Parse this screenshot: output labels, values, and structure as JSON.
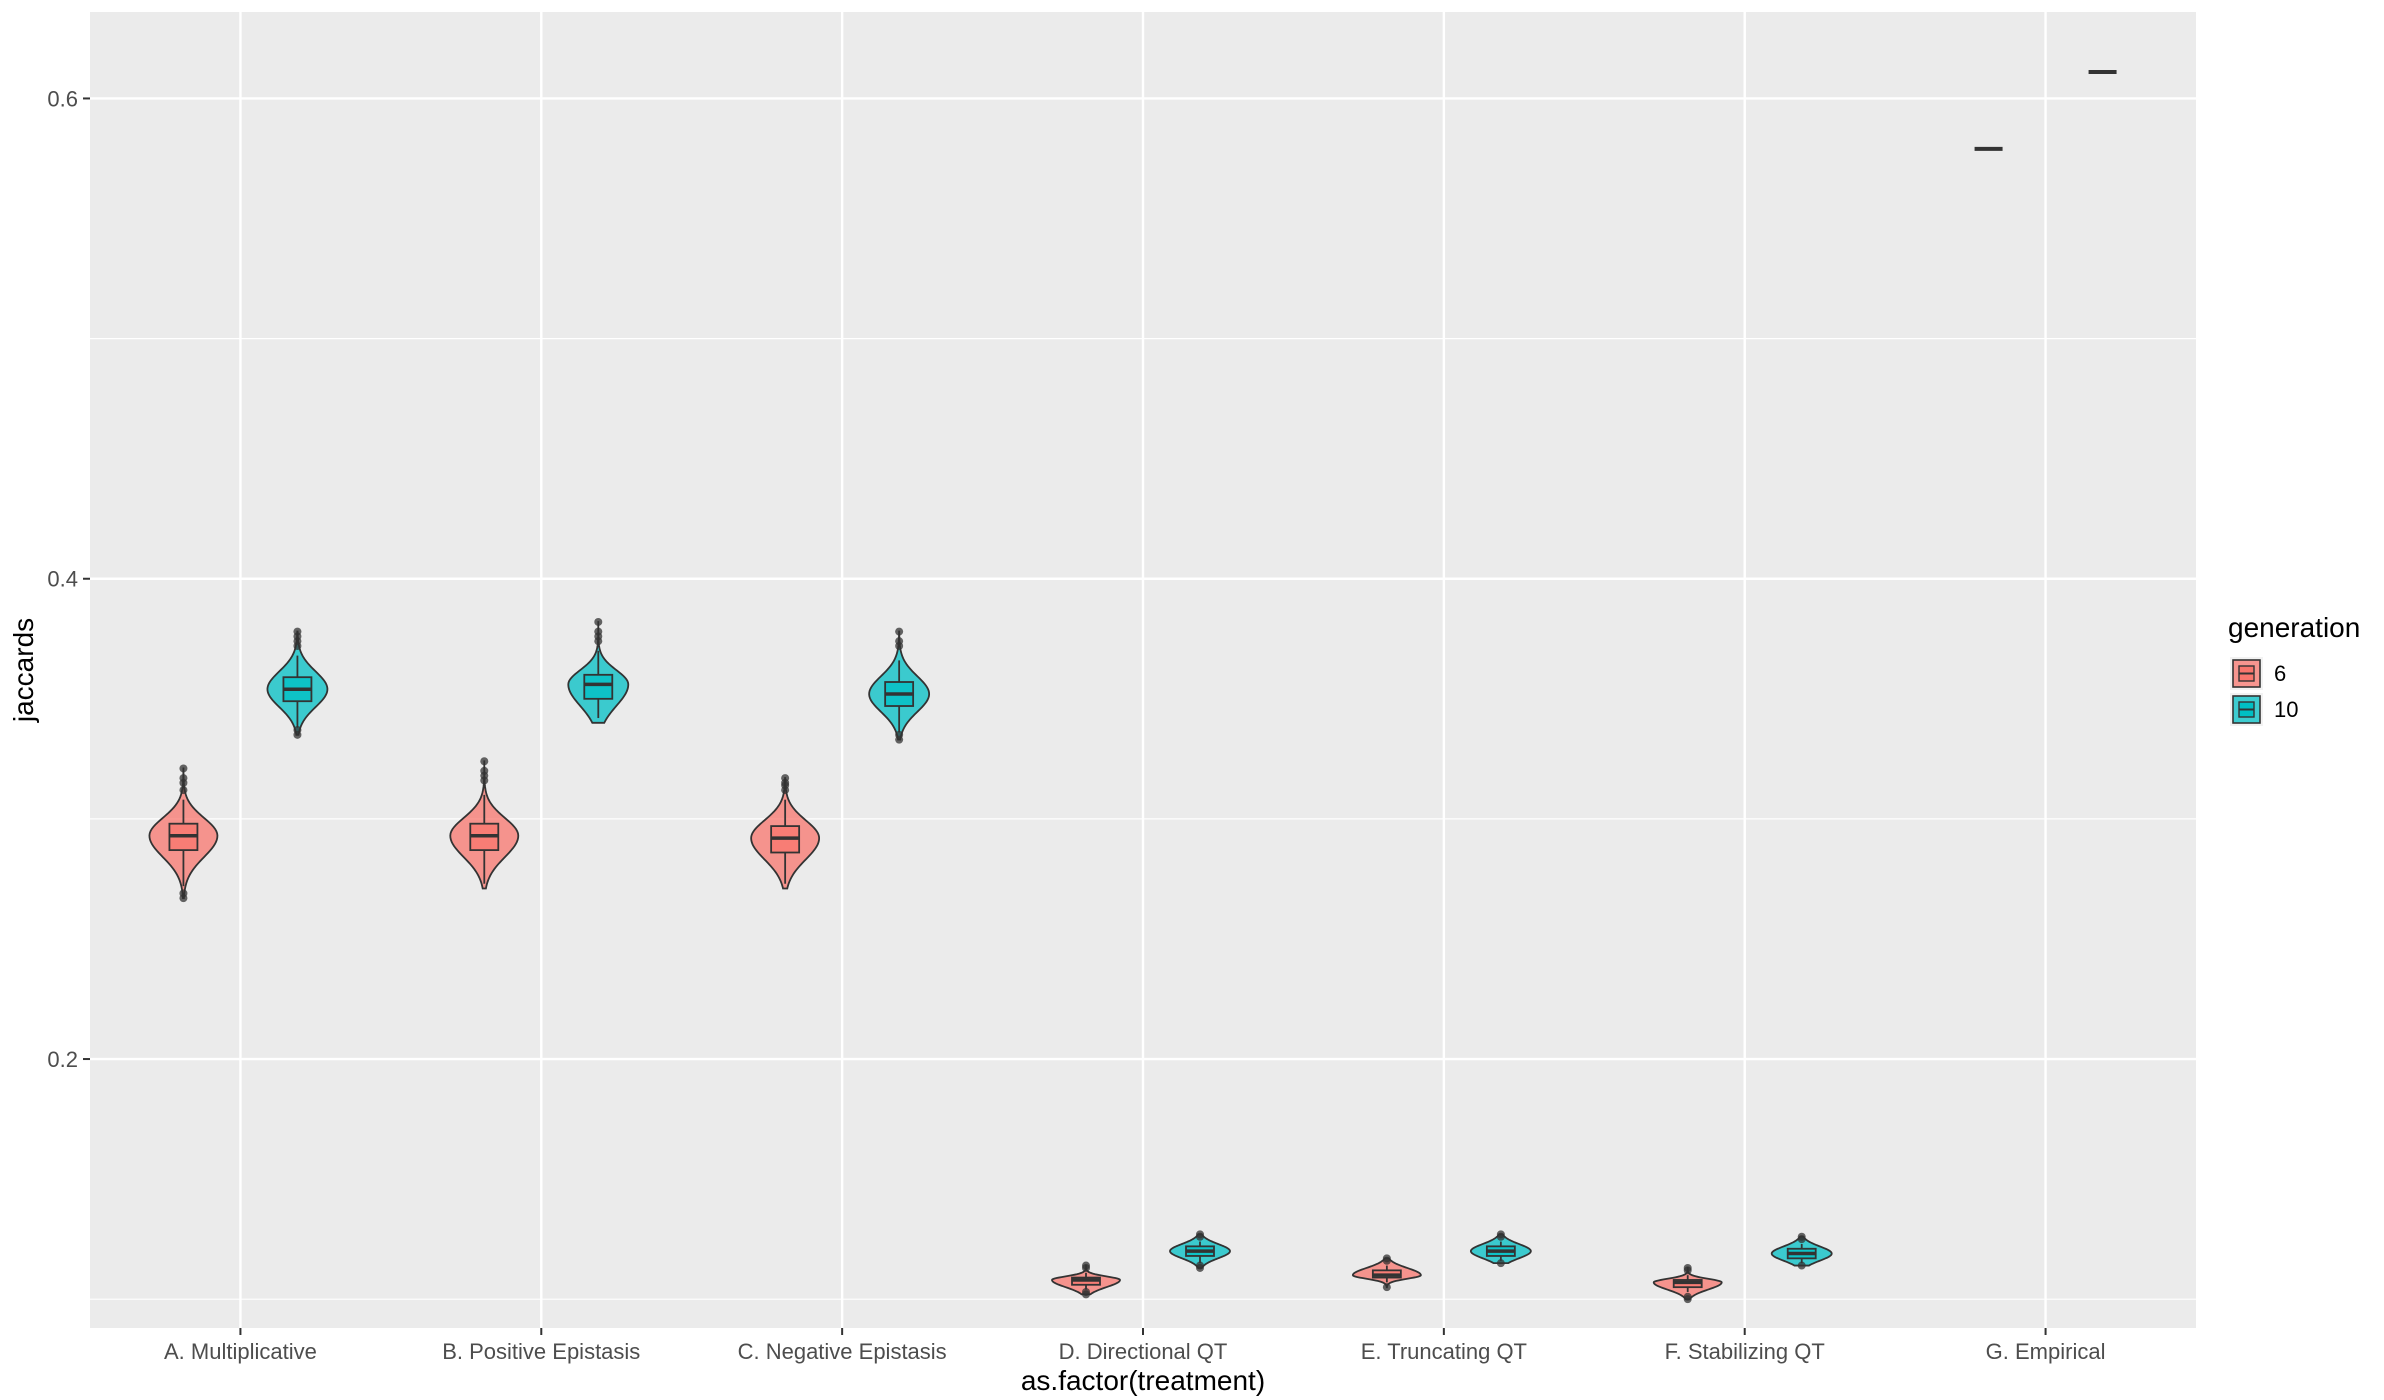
{
  "chart_data": {
    "type": "violin",
    "xlabel": "as.factor(treatment)",
    "ylabel": "jaccards",
    "categories": [
      "A. Multiplicative",
      "B. Positive Epistasis",
      "C. Negative Epistasis",
      "D. Directional QT",
      "E. Truncating QT",
      "F. Stabilizing QT",
      "G. Empirical"
    ],
    "ylim": [
      0.088,
      0.636
    ],
    "yticks": [
      0.2,
      0.4,
      0.6
    ],
    "ytick_labels": [
      "0.2",
      "0.4",
      "0.6"
    ],
    "grid": true,
    "legend": {
      "title": "generation",
      "position": "right",
      "entries": [
        {
          "label": "6",
          "color": "#F8766D"
        },
        {
          "label": "10",
          "color": "#00BFC4"
        }
      ]
    },
    "series": [
      {
        "name": "6",
        "color": "#F8766D",
        "groups": [
          {
            "category": "A. Multiplicative",
            "min": 0.267,
            "q1": 0.287,
            "median": 0.293,
            "q3": 0.298,
            "max": 0.321,
            "whisker_low": 0.272,
            "whisker_high": 0.308,
            "outliers": [
              0.267,
              0.269,
              0.312,
              0.315,
              0.317,
              0.321
            ]
          },
          {
            "category": "B. Positive Epistasis",
            "min": 0.271,
            "q1": 0.287,
            "median": 0.293,
            "q3": 0.298,
            "max": 0.324,
            "whisker_low": 0.273,
            "whisker_high": 0.31,
            "outliers": [
              0.316,
              0.318,
              0.32,
              0.324
            ]
          },
          {
            "category": "C. Negative Epistasis",
            "min": 0.271,
            "q1": 0.286,
            "median": 0.292,
            "q3": 0.297,
            "max": 0.317,
            "whisker_low": 0.273,
            "whisker_high": 0.308,
            "outliers": [
              0.312,
              0.314,
              0.315,
              0.317
            ]
          },
          {
            "category": "D. Directional QT",
            "min": 0.102,
            "q1": 0.106,
            "median": 0.108,
            "q3": 0.109,
            "max": 0.114,
            "whisker_low": 0.104,
            "whisker_high": 0.111,
            "outliers": [
              0.102,
              0.103,
              0.113,
              0.114
            ]
          },
          {
            "category": "E. Truncating QT",
            "min": 0.105,
            "q1": 0.109,
            "median": 0.11,
            "q3": 0.112,
            "max": 0.117,
            "whisker_low": 0.107,
            "whisker_high": 0.114,
            "outliers": [
              0.105,
              0.116,
              0.117
            ]
          },
          {
            "category": "F. Stabilizing QT",
            "min": 0.1,
            "q1": 0.105,
            "median": 0.107,
            "q3": 0.108,
            "max": 0.113,
            "whisker_low": 0.103,
            "whisker_high": 0.11,
            "outliers": [
              0.1,
              0.101,
              0.112,
              0.113
            ]
          },
          {
            "category": "G. Empirical",
            "min": 0.579,
            "q1": 0.579,
            "median": 0.579,
            "q3": 0.579,
            "max": 0.579,
            "whisker_low": 0.579,
            "whisker_high": 0.579,
            "outliers": []
          }
        ]
      },
      {
        "name": "10",
        "color": "#00BFC4",
        "groups": [
          {
            "category": "A. Multiplicative",
            "min": 0.335,
            "q1": 0.349,
            "median": 0.354,
            "q3": 0.359,
            "max": 0.378,
            "whisker_low": 0.338,
            "whisker_high": 0.368,
            "outliers": [
              0.335,
              0.337,
              0.372,
              0.374,
              0.376,
              0.378
            ]
          },
          {
            "category": "B. Positive Epistasis",
            "min": 0.34,
            "q1": 0.35,
            "median": 0.356,
            "q3": 0.36,
            "max": 0.382,
            "whisker_low": 0.342,
            "whisker_high": 0.37,
            "outliers": [
              0.374,
              0.376,
              0.378,
              0.382
            ]
          },
          {
            "category": "C. Negative Epistasis",
            "min": 0.333,
            "q1": 0.347,
            "median": 0.352,
            "q3": 0.357,
            "max": 0.378,
            "whisker_low": 0.336,
            "whisker_high": 0.366,
            "outliers": [
              0.333,
              0.335,
              0.372,
              0.374,
              0.378
            ]
          },
          {
            "category": "D. Directional QT",
            "min": 0.113,
            "q1": 0.118,
            "median": 0.12,
            "q3": 0.122,
            "max": 0.127,
            "whisker_low": 0.115,
            "whisker_high": 0.124,
            "outliers": [
              0.113,
              0.114,
              0.126,
              0.127
            ]
          },
          {
            "category": "E. Truncating QT",
            "min": 0.115,
            "q1": 0.118,
            "median": 0.12,
            "q3": 0.122,
            "max": 0.127,
            "whisker_low": 0.116,
            "whisker_high": 0.124,
            "outliers": [
              0.115,
              0.126,
              0.127
            ]
          },
          {
            "category": "F. Stabilizing QT",
            "min": 0.114,
            "q1": 0.117,
            "median": 0.119,
            "q3": 0.121,
            "max": 0.126,
            "whisker_low": 0.115,
            "whisker_high": 0.123,
            "outliers": [
              0.114,
              0.125,
              0.126
            ]
          },
          {
            "category": "G. Empirical",
            "min": 0.611,
            "q1": 0.611,
            "median": 0.611,
            "q3": 0.611,
            "max": 0.611,
            "whisker_low": 0.611,
            "whisker_high": 0.611,
            "outliers": []
          }
        ]
      }
    ]
  }
}
